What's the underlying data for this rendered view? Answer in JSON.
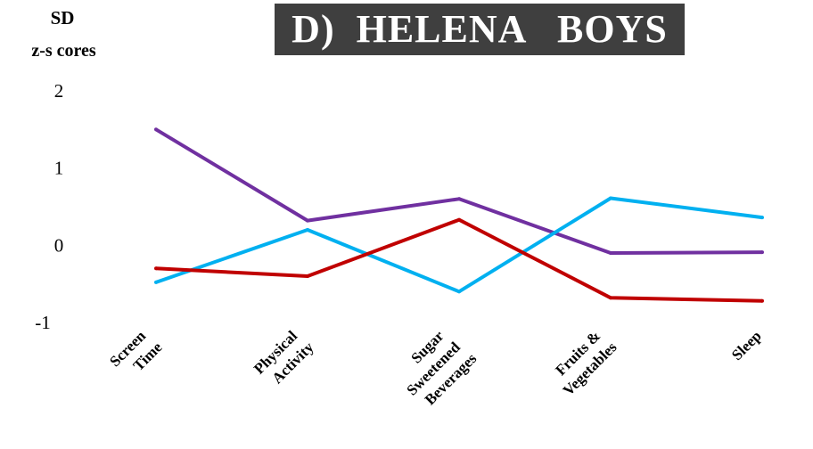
{
  "chart_data": {
    "type": "line",
    "title": "D)  HELENA   BOYS",
    "ylabel_line1": "SD",
    "ylabel_line2": "z-s cores",
    "categories": [
      [
        "Screen",
        "Time"
      ],
      [
        "Physical",
        "Activity"
      ],
      [
        "Sugar",
        "Sweetened",
        "Beverages"
      ],
      [
        "Fruits &",
        "Vegetables"
      ],
      [
        "Sleep"
      ]
    ],
    "yticks": [
      "2",
      "1",
      "0",
      "-1"
    ],
    "ylim": [
      -1,
      2
    ],
    "grid": false,
    "legend": "none",
    "series": [
      {
        "color": "#7030a0",
        "values": [
          1.5,
          0.32,
          0.6,
          -0.1,
          -0.09
        ]
      },
      {
        "color": "#00b0f0",
        "values": [
          -0.48,
          0.2,
          -0.6,
          0.61,
          0.36
        ]
      },
      {
        "color": "#c00000",
        "values": [
          -0.3,
          -0.4,
          0.33,
          -0.68,
          -0.72
        ]
      }
    ]
  }
}
